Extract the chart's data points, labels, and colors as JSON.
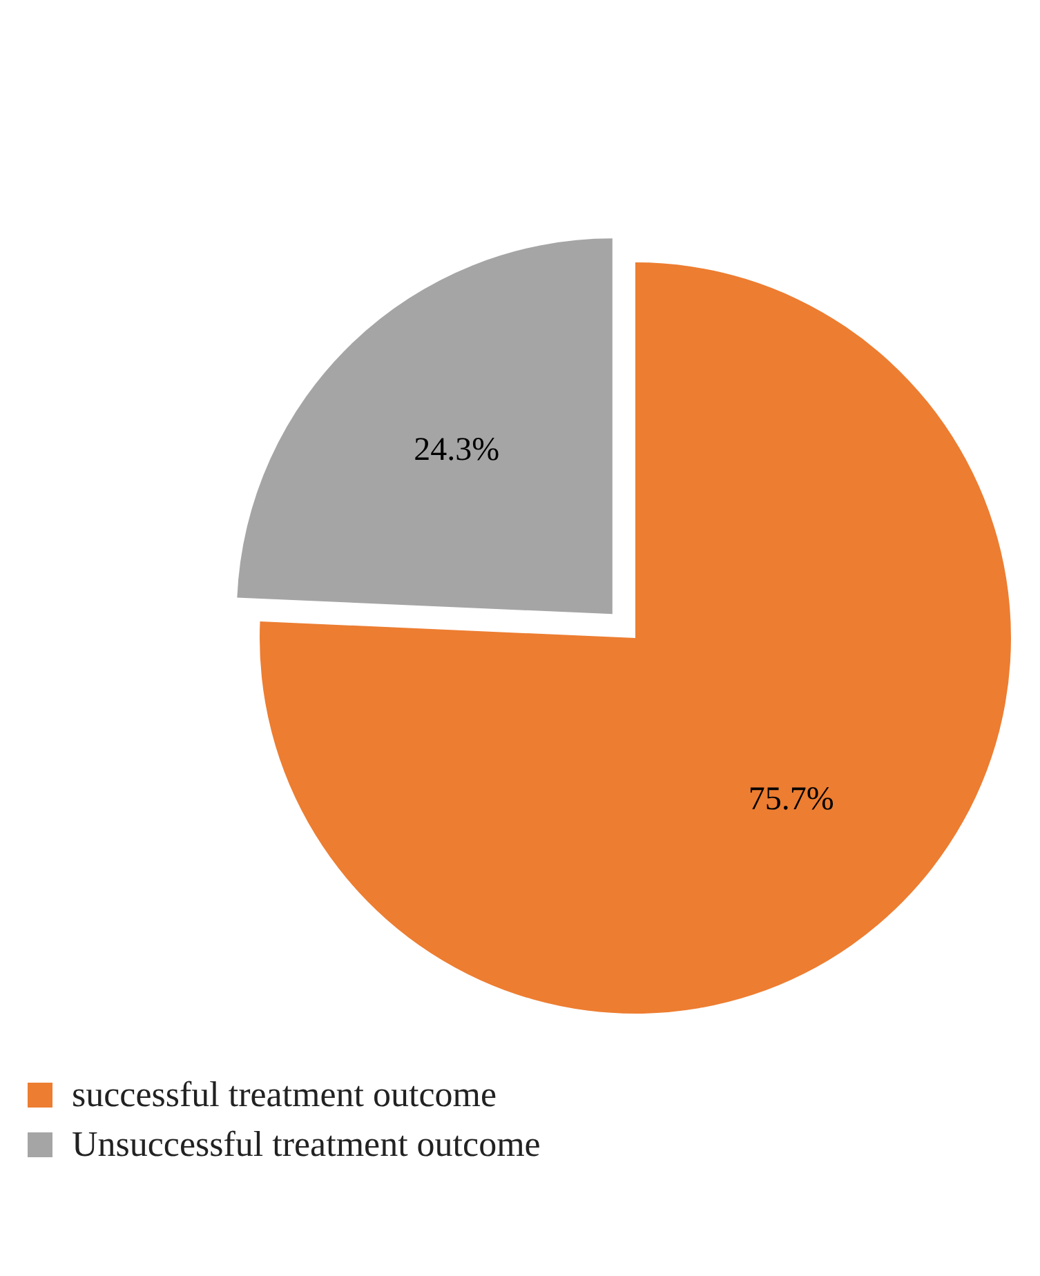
{
  "chart_data": {
    "type": "pie",
    "categories": [
      "successful treatment outcome",
      "Unsuccessful treatment outcome"
    ],
    "values": [
      75.7,
      24.3
    ],
    "colors": [
      "#ed7d31",
      "#a5a5a5"
    ],
    "value_labels": [
      "75.7%",
      "24.3%"
    ],
    "legend": "bottom left"
  }
}
